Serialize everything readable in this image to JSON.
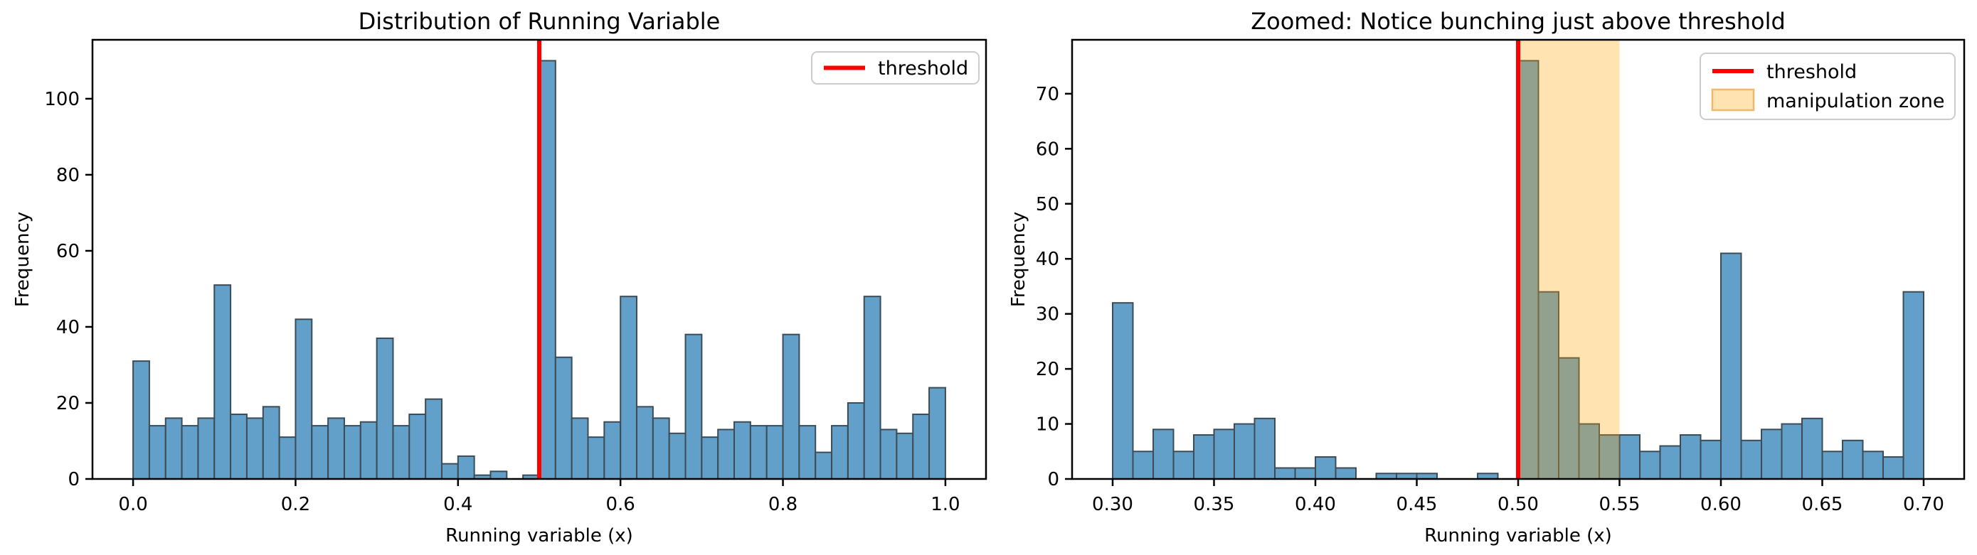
{
  "chart_data": [
    {
      "type": "bar",
      "subtype": "histogram",
      "title": "Distribution of Running Variable",
      "xlabel": "Running variable (x)",
      "ylabel": "Frequency",
      "xlim": [
        -0.05,
        1.05
      ],
      "ylim": [
        0,
        115.5
      ],
      "grid": false,
      "legend_position": "upper right",
      "xticks": [
        {
          "v": 0.0,
          "label": "0.0"
        },
        {
          "v": 0.2,
          "label": "0.2"
        },
        {
          "v": 0.4,
          "label": "0.4"
        },
        {
          "v": 0.6,
          "label": "0.6"
        },
        {
          "v": 0.8,
          "label": "0.8"
        },
        {
          "v": 1.0,
          "label": "1.0"
        }
      ],
      "yticks": [
        {
          "v": 0,
          "label": "0"
        },
        {
          "v": 20,
          "label": "20"
        },
        {
          "v": 40,
          "label": "40"
        },
        {
          "v": 60,
          "label": "60"
        },
        {
          "v": 80,
          "label": "80"
        },
        {
          "v": 100,
          "label": "100"
        }
      ],
      "bins": {
        "start": 0.0,
        "width": 0.02,
        "counts": [
          31,
          14,
          16,
          14,
          16,
          51,
          17,
          16,
          19,
          11,
          42,
          14,
          16,
          14,
          15,
          37,
          14,
          17,
          21,
          4,
          6,
          1,
          2,
          0,
          1,
          110,
          32,
          16,
          11,
          15,
          48,
          19,
          16,
          12,
          38,
          11,
          13,
          15,
          14,
          14,
          38,
          14,
          7,
          14,
          20,
          48,
          13,
          12,
          17,
          24
        ]
      },
      "threshold": 0.5,
      "legend": [
        {
          "type": "line",
          "label": "threshold"
        }
      ]
    },
    {
      "type": "bar",
      "subtype": "histogram",
      "title": "Zoomed: Notice bunching just above threshold",
      "xlabel": "Running variable (x)",
      "ylabel": "Frequency",
      "xlim": [
        0.28,
        0.72
      ],
      "ylim": [
        0,
        79.8
      ],
      "grid": false,
      "legend_position": "upper right",
      "xticks": [
        {
          "v": 0.3,
          "label": "0.30"
        },
        {
          "v": 0.35,
          "label": "0.35"
        },
        {
          "v": 0.4,
          "label": "0.40"
        },
        {
          "v": 0.45,
          "label": "0.45"
        },
        {
          "v": 0.5,
          "label": "0.50"
        },
        {
          "v": 0.55,
          "label": "0.55"
        },
        {
          "v": 0.6,
          "label": "0.60"
        },
        {
          "v": 0.65,
          "label": "0.65"
        },
        {
          "v": 0.7,
          "label": "0.70"
        }
      ],
      "yticks": [
        {
          "v": 0,
          "label": "0"
        },
        {
          "v": 10,
          "label": "10"
        },
        {
          "v": 20,
          "label": "20"
        },
        {
          "v": 30,
          "label": "30"
        },
        {
          "v": 40,
          "label": "40"
        },
        {
          "v": 50,
          "label": "50"
        },
        {
          "v": 60,
          "label": "60"
        },
        {
          "v": 70,
          "label": "70"
        }
      ],
      "bins": {
        "start": 0.3,
        "width": 0.01,
        "counts": [
          32,
          5,
          9,
          5,
          8,
          9,
          10,
          11,
          2,
          2,
          4,
          2,
          0,
          1,
          1,
          1,
          0,
          0,
          1,
          0,
          76,
          34,
          22,
          10,
          8,
          8,
          5,
          6,
          8,
          7,
          41,
          7,
          9,
          10,
          11,
          5,
          7,
          5,
          4,
          34
        ]
      },
      "threshold": 0.5,
      "manipulation_zone": [
        0.5,
        0.55
      ],
      "legend": [
        {
          "type": "line",
          "label": "threshold"
        },
        {
          "type": "patch",
          "label": "manipulation zone"
        }
      ]
    }
  ],
  "colors": {
    "bar_fill": "#62a0ca",
    "bar_edge": "#3d4b54",
    "threshold": "#ff0000",
    "zone_fill": "rgba(255,165,0,0.30)",
    "zone_legend_fill": "#ffe4b2",
    "zone_legend_edge": "#edb96e",
    "legend_border": "#cccccc",
    "spine": "#000000",
    "text": "#000000",
    "background": "#ffffff"
  }
}
